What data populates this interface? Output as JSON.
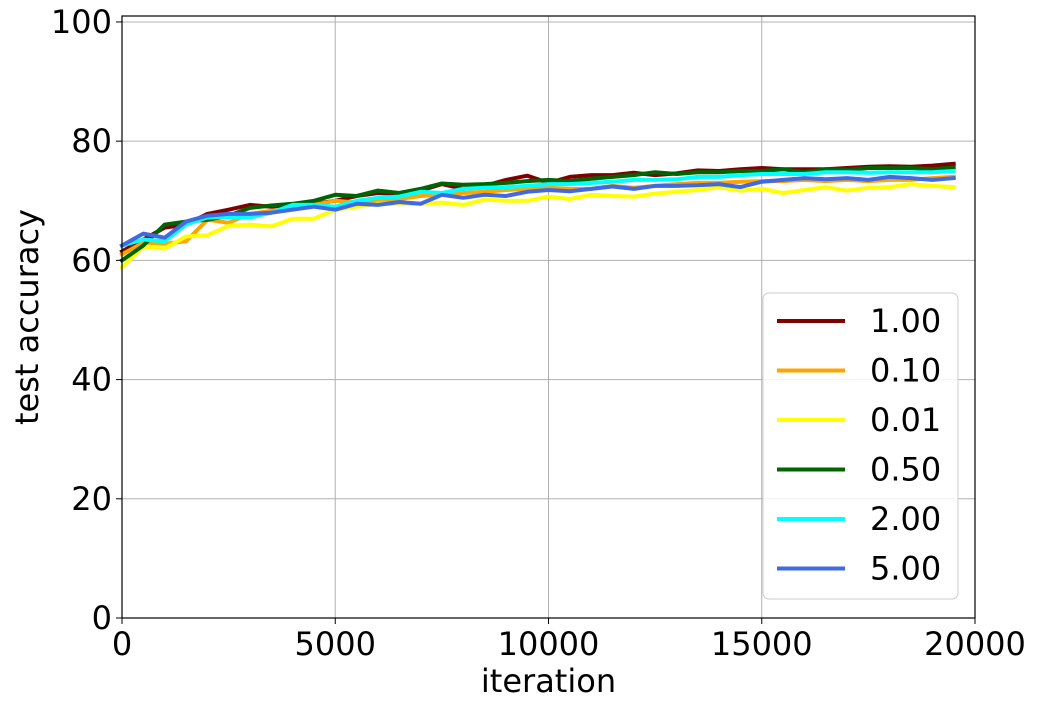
{
  "chart_data": {
    "type": "line",
    "title": "",
    "xlabel": "iteration",
    "ylabel": "test accuracy",
    "xlim": [
      0,
      20000
    ],
    "ylim": [
      0,
      101
    ],
    "xticks": [
      "0",
      "5000",
      "10000",
      "15000",
      "20000"
    ],
    "xtick_values": [
      0,
      5000,
      10000,
      15000,
      20000
    ],
    "yticks": [
      "0",
      "20",
      "40",
      "60",
      "80",
      "100"
    ],
    "ytick_values": [
      0,
      20,
      40,
      60,
      80,
      100
    ],
    "grid": true,
    "legend_position": "lower-right",
    "x": [
      0,
      500,
      1000,
      1500,
      2000,
      2500,
      3000,
      3500,
      4000,
      4500,
      5000,
      5500,
      6000,
      6500,
      7000,
      7500,
      8000,
      8500,
      9000,
      9500,
      10000,
      10500,
      11000,
      11500,
      12000,
      12500,
      13000,
      13500,
      14000,
      14500,
      15000,
      15500,
      16000,
      16500,
      17000,
      17500,
      18000,
      18500,
      19000,
      19500
    ],
    "series": [
      {
        "name": "1.00",
        "color": "#800000",
        "values": [
          61.5,
          63.5,
          65.5,
          66.0,
          67.8,
          68.5,
          69.3,
          69.0,
          69.3,
          69.5,
          70.0,
          70.8,
          71.3,
          71.2,
          71.7,
          72.8,
          72.0,
          72.5,
          73.5,
          74.2,
          73.0,
          74.0,
          74.3,
          74.3,
          74.7,
          74.3,
          74.6,
          75.1,
          75.0,
          75.3,
          75.5,
          75.3,
          75.3,
          75.3,
          75.5,
          75.7,
          75.8,
          75.7,
          75.9,
          76.2
        ]
      },
      {
        "name": "0.10",
        "color": "#ffa500",
        "values": [
          61.0,
          63.0,
          62.8,
          63.2,
          66.8,
          66.3,
          67.8,
          68.3,
          68.8,
          69.3,
          70.0,
          69.7,
          70.0,
          70.3,
          70.8,
          71.0,
          71.3,
          71.5,
          71.8,
          72.0,
          72.2,
          72.0,
          72.0,
          72.5,
          72.2,
          72.5,
          72.8,
          73.0,
          73.0,
          73.2,
          73.3,
          73.3,
          73.5,
          73.3,
          73.5,
          73.3,
          73.5,
          73.5,
          73.8,
          74.0
        ]
      },
      {
        "name": "0.01",
        "color": "#ffff00",
        "values": [
          58.8,
          62.3,
          62.0,
          64.0,
          64.2,
          65.8,
          66.0,
          65.7,
          67.0,
          67.0,
          68.5,
          69.0,
          69.5,
          69.5,
          69.5,
          69.7,
          69.3,
          70.2,
          70.0,
          70.0,
          70.7,
          70.3,
          71.0,
          70.8,
          70.7,
          71.2,
          71.5,
          71.8,
          72.3,
          71.7,
          72.0,
          71.3,
          71.8,
          72.3,
          71.7,
          72.2,
          72.3,
          72.8,
          72.5,
          72.3
        ]
      },
      {
        "name": "0.50",
        "color": "#006400",
        "values": [
          60.0,
          62.5,
          66.0,
          66.5,
          66.8,
          67.5,
          68.8,
          69.2,
          69.5,
          70.0,
          71.0,
          70.8,
          71.7,
          71.3,
          72.0,
          72.9,
          72.7,
          72.8,
          73.0,
          73.3,
          73.5,
          73.3,
          73.7,
          74.0,
          74.3,
          74.8,
          74.5,
          74.8,
          74.8,
          75.0,
          75.0,
          75.3,
          74.8,
          75.3,
          75.2,
          75.5,
          75.5,
          75.5,
          75.3,
          75.6
        ]
      },
      {
        "name": "2.00",
        "color": "#00ffff",
        "values": [
          62.5,
          63.5,
          63.2,
          66.0,
          67.2,
          67.3,
          67.2,
          68.0,
          69.3,
          69.3,
          69.0,
          70.0,
          70.5,
          70.7,
          71.5,
          71.3,
          72.0,
          72.2,
          72.3,
          72.5,
          72.8,
          72.8,
          73.0,
          73.2,
          73.5,
          73.5,
          73.6,
          74.0,
          74.0,
          74.3,
          74.5,
          74.5,
          74.5,
          74.8,
          74.8,
          74.7,
          74.8,
          74.8,
          74.8,
          75.0
        ]
      },
      {
        "name": "5.00",
        "color": "#4169e1",
        "values": [
          62.5,
          64.5,
          63.8,
          66.5,
          67.5,
          67.8,
          67.8,
          68.0,
          68.5,
          69.0,
          68.5,
          69.5,
          69.3,
          69.8,
          69.5,
          71.0,
          70.5,
          71.0,
          70.8,
          71.5,
          71.8,
          71.6,
          72.0,
          72.4,
          72.0,
          72.5,
          72.5,
          72.6,
          72.8,
          72.3,
          73.2,
          73.5,
          73.8,
          73.6,
          73.8,
          73.5,
          74.0,
          73.8,
          73.5,
          73.8
        ]
      }
    ]
  }
}
